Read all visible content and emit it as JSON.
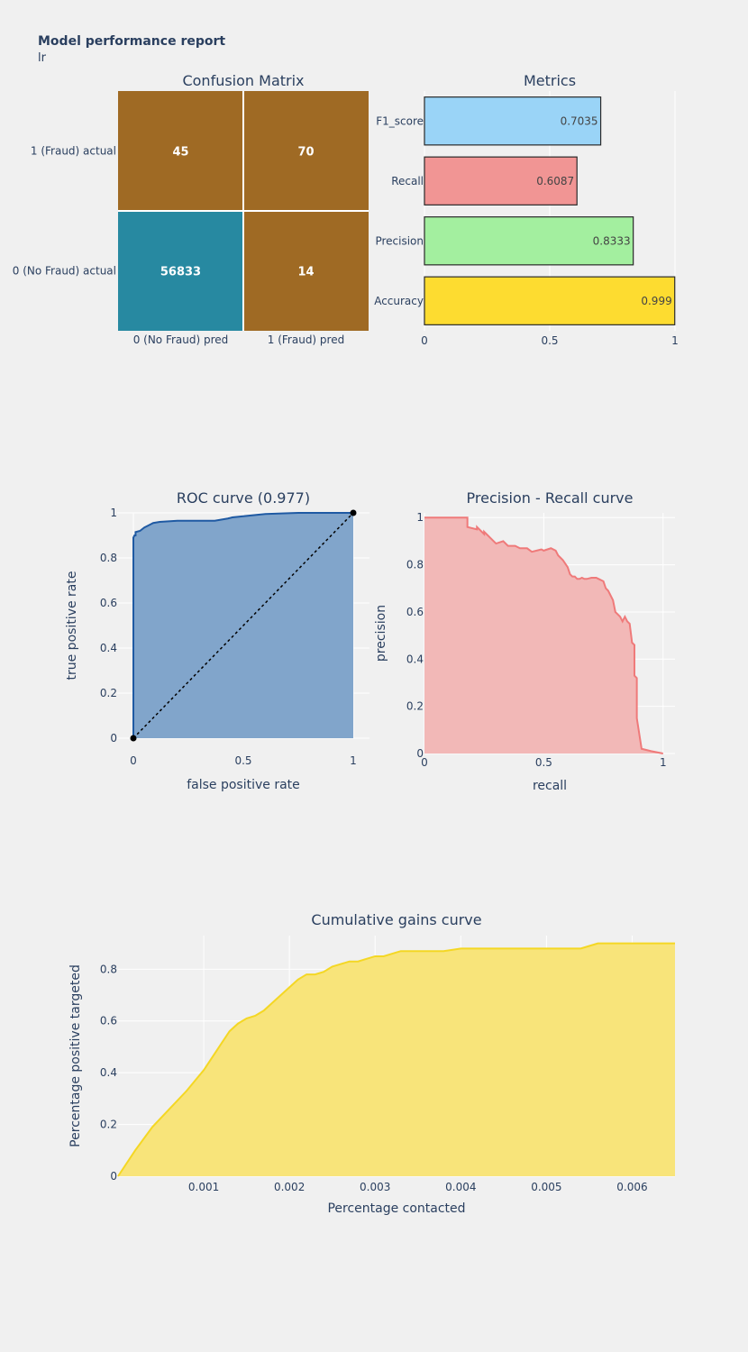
{
  "report": {
    "title": "Model performance report",
    "subtitle": "lr"
  },
  "chart_data": [
    {
      "type": "heatmap",
      "title": "Confusion Matrix",
      "x_labels": [
        "0 (No Fraud) pred",
        "1 (Fraud) pred"
      ],
      "y_labels": [
        "1 (Fraud) actual",
        "0 (No Fraud) actual"
      ],
      "values": [
        [
          45,
          70
        ],
        [
          56833,
          14
        ]
      ],
      "colors": {
        "high": "#2789a1",
        "low": "#9f6a24"
      }
    },
    {
      "type": "bar",
      "orientation": "horizontal",
      "title": "Metrics",
      "categories": [
        "F1_score",
        "Recall",
        "Precision",
        "Accuracy"
      ],
      "values": [
        0.7035,
        0.6087,
        0.8333,
        0.999
      ],
      "labels": [
        "0.7035",
        "0.6087",
        "0.8333",
        "0.999"
      ],
      "colors": [
        "#9ad4f7",
        "#f19594",
        "#a3ef9f",
        "#fddc30"
      ],
      "xlim": [
        0,
        1
      ],
      "xticks": [
        "0",
        "0.5",
        "1"
      ]
    },
    {
      "type": "area",
      "title": "ROC curve (0.977)",
      "xlabel": "false positive rate",
      "ylabel": "true positive rate",
      "xlim": [
        0,
        1
      ],
      "ylim": [
        0,
        1
      ],
      "xticks": [
        "0",
        "0.5",
        "1"
      ],
      "yticks": [
        "0",
        "0.2",
        "0.4",
        "0.6",
        "0.8",
        "1"
      ],
      "x": [
        0,
        0,
        0.005,
        0.01,
        0.01,
        0.03,
        0.05,
        0.06,
        0.08,
        0.09,
        0.12,
        0.2,
        0.27,
        0.37,
        0.43,
        0.45,
        0.55,
        0.6,
        0.75,
        0.85,
        0.93,
        1
      ],
      "y": [
        0,
        0.89,
        0.9,
        0.9,
        0.915,
        0.92,
        0.935,
        0.94,
        0.95,
        0.955,
        0.96,
        0.965,
        0.965,
        0.965,
        0.975,
        0.98,
        0.99,
        0.995,
        1,
        1,
        1,
        1
      ],
      "diagonal": {
        "x": [
          0,
          1
        ],
        "y": [
          0,
          1
        ]
      },
      "color": "#1f5aa3",
      "fill": "#81a5cb"
    },
    {
      "type": "area",
      "title": "Precision - Recall curve",
      "xlabel": "recall",
      "ylabel": "precision",
      "xlim": [
        0,
        1.05
      ],
      "ylim": [
        0,
        1.02
      ],
      "xticks": [
        "0",
        "0.5",
        "1"
      ],
      "yticks": [
        "0",
        "0.2",
        "0.4",
        "0.6",
        "0.8",
        "1"
      ],
      "x": [
        0,
        0.18,
        0.18,
        0.22,
        0.22,
        0.25,
        0.25,
        0.29,
        0.3,
        0.33,
        0.35,
        0.38,
        0.4,
        0.43,
        0.45,
        0.47,
        0.49,
        0.5,
        0.53,
        0.55,
        0.56,
        0.57,
        0.58,
        0.6,
        0.61,
        0.62,
        0.63,
        0.64,
        0.65,
        0.66,
        0.67,
        0.68,
        0.7,
        0.72,
        0.73,
        0.75,
        0.76,
        0.77,
        0.78,
        0.79,
        0.8,
        0.82,
        0.83,
        0.84,
        0.85,
        0.86,
        0.87,
        0.88,
        0.88,
        0.89,
        0.89,
        0.91,
        0.95,
        1
      ],
      "y": [
        1,
        1,
        0.96,
        0.95,
        0.96,
        0.93,
        0.94,
        0.9,
        0.89,
        0.9,
        0.88,
        0.88,
        0.87,
        0.87,
        0.855,
        0.86,
        0.865,
        0.86,
        0.87,
        0.86,
        0.84,
        0.83,
        0.82,
        0.79,
        0.76,
        0.75,
        0.75,
        0.74,
        0.74,
        0.745,
        0.74,
        0.74,
        0.745,
        0.745,
        0.74,
        0.73,
        0.7,
        0.69,
        0.67,
        0.65,
        0.6,
        0.58,
        0.56,
        0.58,
        0.56,
        0.55,
        0.47,
        0.46,
        0.33,
        0.32,
        0.15,
        0.02,
        0.01,
        0
      ],
      "color": "#ef7a7a",
      "fill": "#f2b8b7"
    },
    {
      "type": "area",
      "title": "Cumulative gains curve",
      "xlabel": "Percentage contacted",
      "ylabel": "Percentage positive targeted",
      "xlim": [
        0,
        0.0065
      ],
      "ylim": [
        0,
        0.93
      ],
      "xticks": [
        "0.001",
        "0.002",
        "0.003",
        "0.004",
        "0.005",
        "0.006"
      ],
      "yticks": [
        "0",
        "0.2",
        "0.4",
        "0.6",
        "0.8"
      ],
      "x": [
        0,
        0.0002,
        0.0004,
        0.0006,
        0.0008,
        0.001,
        0.0011,
        0.0012,
        0.0013,
        0.0014,
        0.0015,
        0.0016,
        0.0017,
        0.0018,
        0.0019,
        0.002,
        0.0021,
        0.0022,
        0.0023,
        0.0024,
        0.0025,
        0.0026,
        0.0027,
        0.0028,
        0.0029,
        0.003,
        0.0031,
        0.0032,
        0.0033,
        0.0035,
        0.0037,
        0.0038,
        0.004,
        0.0042,
        0.0045,
        0.005,
        0.0054,
        0.0055,
        0.0056,
        0.006,
        0.0065
      ],
      "y": [
        0,
        0.1,
        0.19,
        0.26,
        0.33,
        0.41,
        0.46,
        0.51,
        0.56,
        0.59,
        0.61,
        0.62,
        0.64,
        0.67,
        0.7,
        0.73,
        0.76,
        0.78,
        0.78,
        0.79,
        0.81,
        0.82,
        0.83,
        0.83,
        0.84,
        0.85,
        0.85,
        0.86,
        0.87,
        0.87,
        0.87,
        0.87,
        0.88,
        0.88,
        0.88,
        0.88,
        0.88,
        0.89,
        0.9,
        0.9,
        0.9
      ],
      "color": "#f4d724",
      "fill": "#f8e47a"
    }
  ]
}
